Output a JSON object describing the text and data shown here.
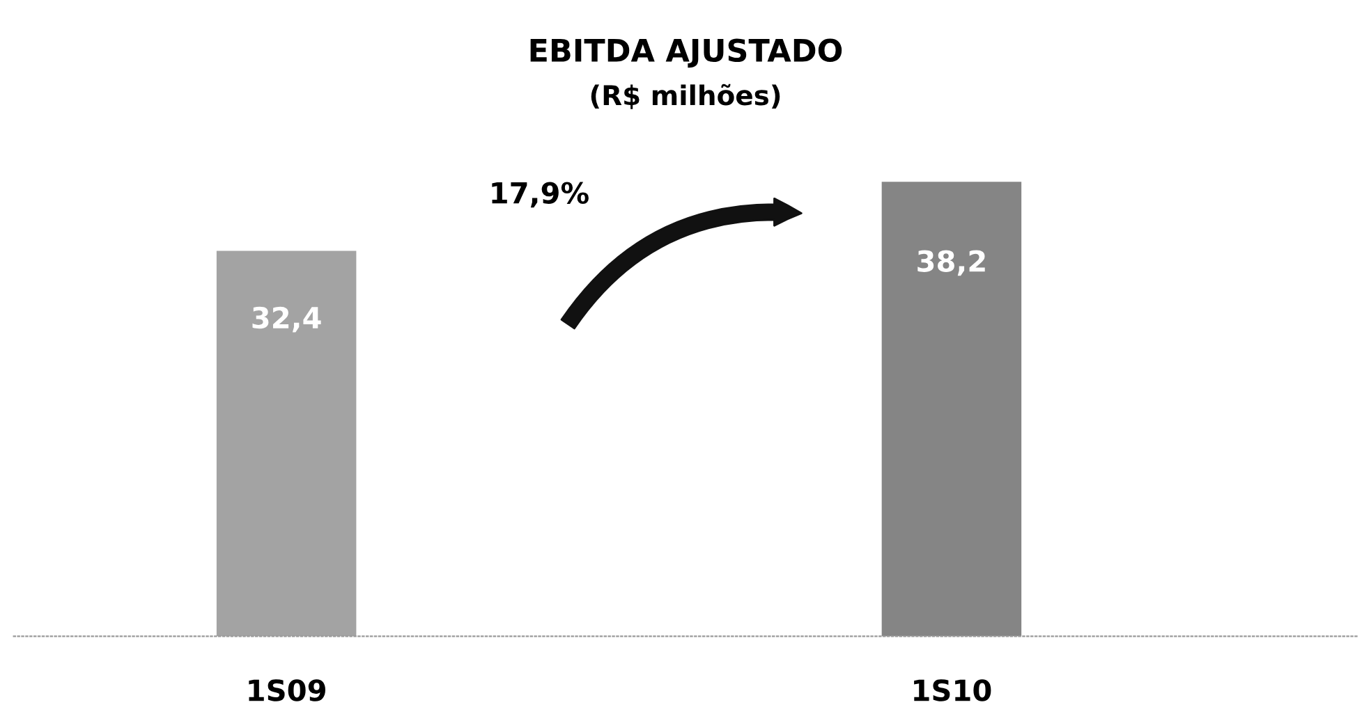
{
  "chart_data": {
    "type": "bar",
    "title": "EBITDA AJUSTADO",
    "subtitle": "(R$ milhões)",
    "categories": [
      "1S09",
      "1S10"
    ],
    "values": [
      32.4,
      38.2
    ],
    "colors": [
      "#a3a3a3",
      "#858585"
    ],
    "value_labels": [
      "32,4",
      "38,2"
    ],
    "annotations": [
      "17,9%"
    ],
    "grid": false
  }
}
